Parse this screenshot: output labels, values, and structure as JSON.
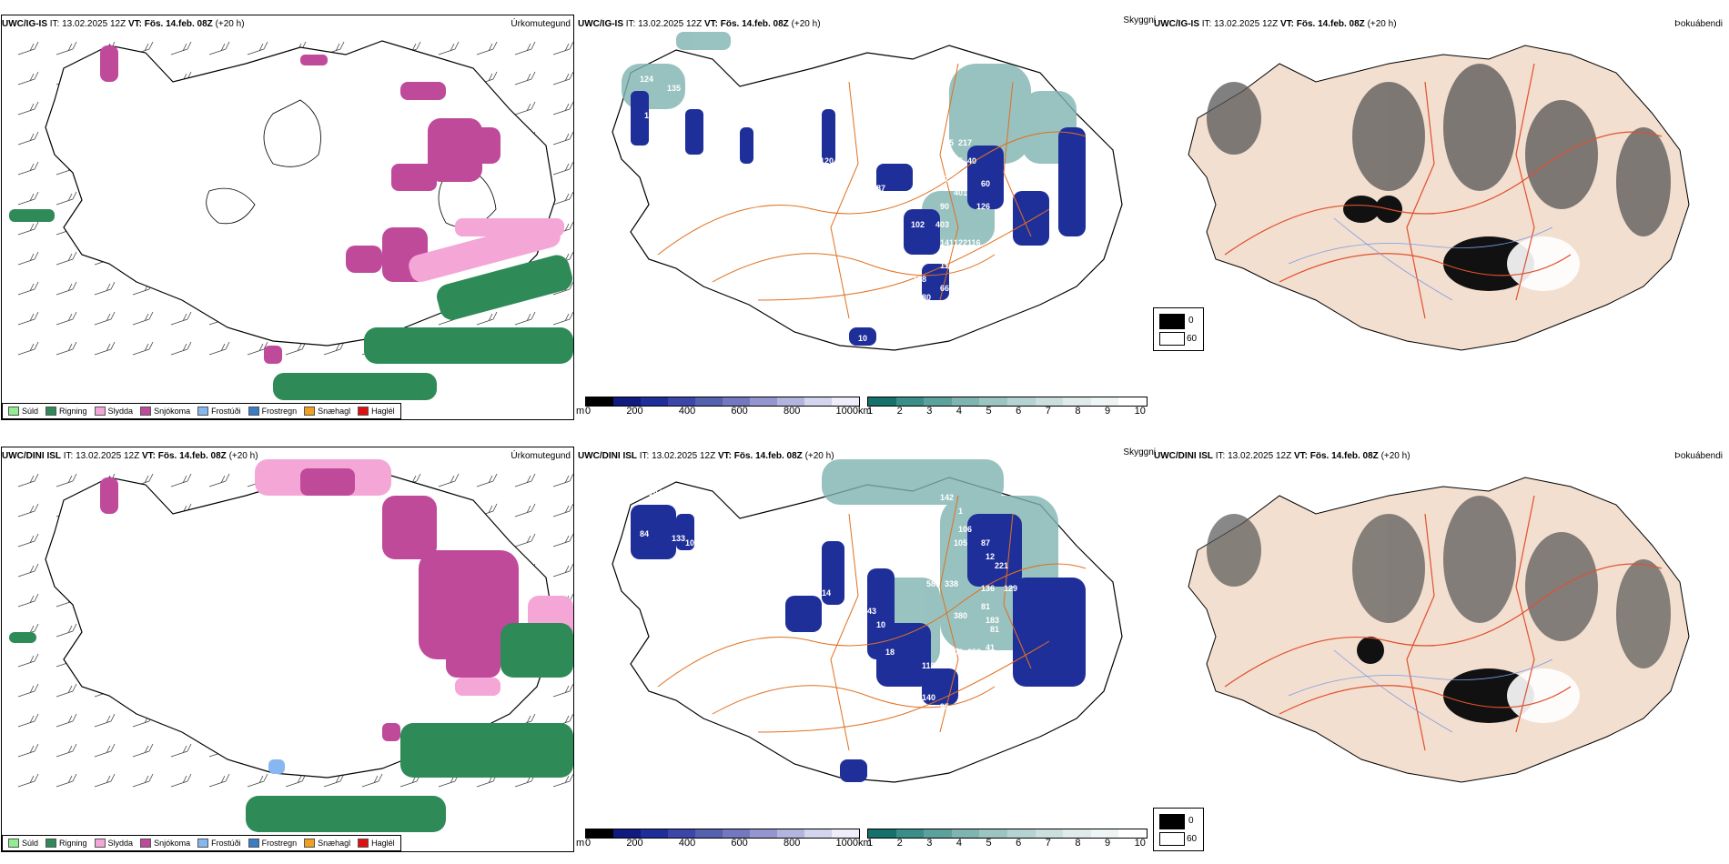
{
  "rows": [
    {
      "precip": {
        "model": "UWC/IG-IS",
        "it": "IT: 13.02.2025 12Z",
        "vt_label": "VT:",
        "vt_value": "Fös. 14.feb. 08Z",
        "lead": "(+20 h)",
        "type": "Úrkomutegund"
      },
      "cloud": {
        "model": "UWC/IG-IS",
        "it": "IT: 13.02.2025 12Z",
        "vt_label": "VT:",
        "vt_value": "Fös. 14.feb. 08Z",
        "lead": "(+20 h)",
        "type": "Skyggni",
        "labels": [
          "124",
          "135",
          "118",
          "128",
          "1",
          "95",
          "111",
          "120",
          "14",
          "87",
          "272",
          "333",
          "388",
          "65",
          "86",
          "147",
          "114",
          "577",
          "217",
          "685",
          "40",
          "401",
          "126",
          "403",
          "60",
          "90",
          "122",
          "102",
          "141",
          "116",
          "124",
          "11",
          "128",
          "80",
          "66",
          "10"
        ]
      },
      "fog": {
        "model": "UWC/IG-IS",
        "it": "IT: 13.02.2025 12Z",
        "vt_label": "VT:",
        "vt_value": "Fös. 14.feb. 08Z",
        "lead": "(+20 h)",
        "type": "Þokuábendi"
      }
    },
    {
      "precip": {
        "model": "UWC/DINI ISL",
        "it": "IT: 13.02.2025 12Z",
        "vt_label": "VT:",
        "vt_value": "Fös. 14.feb. 08Z",
        "lead": "(+20 h)",
        "type": "Úrkomutegund"
      },
      "cloud": {
        "model": "UWC/DINI ISL",
        "it": "IT: 13.02.2025 12Z",
        "vt_label": "VT:",
        "vt_value": "Fös. 14.feb. 08Z",
        "lead": "(+20 h)",
        "type": "Skyggni",
        "labels": [
          "144",
          "120",
          "84",
          "133",
          "10",
          "96",
          "14",
          "142",
          "1",
          "106",
          "105",
          "87",
          "12",
          "589",
          "338",
          "136",
          "221",
          "129",
          "100",
          "43",
          "10",
          "81",
          "183",
          "380",
          "81",
          "41",
          "18",
          "118",
          "106",
          "358",
          "98",
          "140",
          "95",
          "54"
        ]
      },
      "fog": {
        "model": "UWC/DINI ISL",
        "it": "IT: 13.02.2025 12Z",
        "vt_label": "VT:",
        "vt_value": "Fös. 14.feb. 08Z",
        "lead": "(+20 h)",
        "type": "Þokuábendi"
      }
    }
  ],
  "precip_legend": [
    {
      "label": "Súld",
      "color": "#90ee90"
    },
    {
      "label": "Rigning",
      "color": "#2e8b57"
    },
    {
      "label": "Slydda",
      "color": "#f4a6d7"
    },
    {
      "label": "Snjókoma",
      "color": "#c04a9a"
    },
    {
      "label": "Frostúði",
      "color": "#87b7f0"
    },
    {
      "label": "Frostregn",
      "color": "#3a7cc9"
    },
    {
      "label": "Snæhagl",
      "color": "#f0a020"
    },
    {
      "label": "Haglél",
      "color": "#e01010"
    }
  ],
  "cloudbase_scale": {
    "unit": "m",
    "ticks": [
      "0",
      "200",
      "400",
      "600",
      "800",
      "1000"
    ],
    "colors": [
      "#000000",
      "#101a80",
      "#1f2f9a",
      "#3b46a8",
      "#5560b0",
      "#7378c0",
      "#9496cf",
      "#b3b5de",
      "#d3d4ee",
      "#eeeefa"
    ]
  },
  "cloudcover_scale": {
    "unit": "km",
    "ticks": [
      "1",
      "2",
      "3",
      "4",
      "5",
      "6",
      "7",
      "8",
      "9",
      "10"
    ],
    "colors": [
      "#16706b",
      "#3a8d89",
      "#5da19d",
      "#7fb4b0",
      "#9cc4c1",
      "#b5d3d0",
      "#cbe0de",
      "#dfebea",
      "#eef5f4",
      "#ffffff"
    ]
  },
  "visibility_legend": [
    {
      "label": "0",
      "color": "#000000"
    },
    {
      "label": "60",
      "color": "#ffffff"
    }
  ],
  "colors": {
    "coast": "#000000",
    "road": "#e07020",
    "fog_land": "#f3dfcf",
    "fog_road": "#e05030",
    "river": "#7a9ae8"
  }
}
